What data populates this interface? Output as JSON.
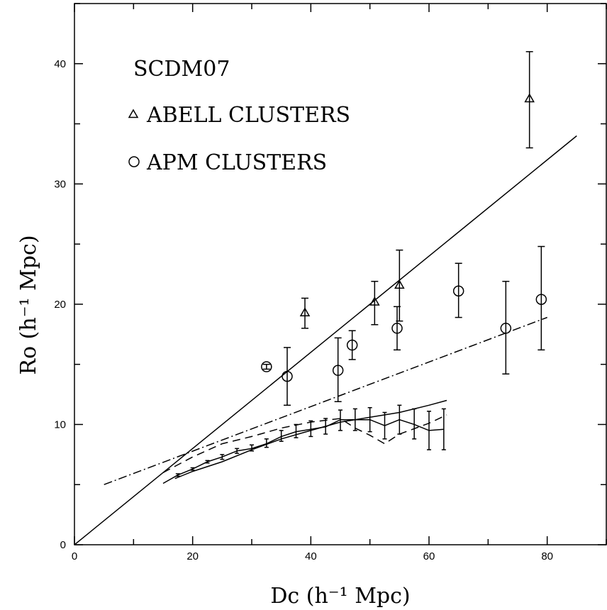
{
  "chart_data": {
    "type": "scatter",
    "title": "SCDM07",
    "xlabel": "Dc (h⁻¹ Mpc)",
    "ylabel": "Ro (h⁻¹ Mpc)",
    "xlim": [
      0,
      90
    ],
    "ylim": [
      0,
      45
    ],
    "x_ticks": [
      "0",
      "20",
      "40",
      "60",
      "80"
    ],
    "y_ticks": [
      "0",
      "10",
      "20",
      "30",
      "40"
    ],
    "x_minor_step": 10,
    "y_minor_step": 5,
    "legend": [
      {
        "label": "ABELL CLUSTERS",
        "marker": "triangle"
      },
      {
        "label": "APM CLUSTERS",
        "marker": "circle"
      }
    ],
    "series": [
      {
        "name": "ABELL CLUSTERS",
        "marker": "triangle",
        "points": [
          {
            "x": 39.0,
            "y": 19.3,
            "lo": 18.0,
            "hi": 20.5
          },
          {
            "x": 50.8,
            "y": 20.2,
            "lo": 18.3,
            "hi": 21.9
          },
          {
            "x": 55.0,
            "y": 21.6,
            "lo": 18.6,
            "hi": 24.5
          },
          {
            "x": 77.0,
            "y": 37.1,
            "lo": 33.0,
            "hi": 41.0
          }
        ]
      },
      {
        "name": "APM CLUSTERS",
        "marker": "circle",
        "points": [
          {
            "x": 32.5,
            "y": 14.8,
            "lo": 14.6,
            "hi": 15.0
          },
          {
            "x": 36.0,
            "y": 14.0,
            "lo": 11.6,
            "hi": 16.4
          },
          {
            "x": 44.6,
            "y": 14.5,
            "lo": 11.9,
            "hi": 17.2
          },
          {
            "x": 47.0,
            "y": 16.6,
            "lo": 15.4,
            "hi": 17.8
          },
          {
            "x": 54.6,
            "y": 18.0,
            "lo": 16.2,
            "hi": 19.8
          },
          {
            "x": 65.0,
            "y": 21.1,
            "lo": 18.9,
            "hi": 23.4
          },
          {
            "x": 73.0,
            "y": 18.0,
            "lo": 14.2,
            "hi": 21.9
          },
          {
            "x": 79.0,
            "y": 20.4,
            "lo": 16.2,
            "hi": 24.8
          }
        ]
      }
    ],
    "lines": [
      {
        "style": "solid",
        "x": [
          0,
          85
        ],
        "y": [
          0,
          34
        ]
      },
      {
        "style": "dashdot",
        "x": [
          5,
          80
        ],
        "y": [
          5.0,
          18.9
        ]
      },
      {
        "style": "solid",
        "x": [
          17,
          20,
          25,
          30,
          35,
          40,
          45,
          50,
          55,
          60,
          63
        ],
        "y": [
          5.5,
          6.1,
          6.9,
          7.9,
          8.8,
          9.5,
          10.2,
          10.6,
          11.0,
          11.6,
          12.0
        ]
      },
      {
        "style": "dashed",
        "x": [
          15,
          20,
          25,
          30,
          35,
          40,
          45,
          47.5,
          50,
          52.5,
          55,
          60,
          63
        ],
        "y": [
          6.0,
          7.3,
          8.4,
          9.0,
          9.7,
          10.2,
          10.5,
          9.7,
          9.1,
          8.4,
          9.2,
          10.1,
          10.8
        ]
      }
    ],
    "errorbar_series": {
      "style": "solid",
      "points": [
        {
          "x": 15,
          "y": 5.1,
          "lo": 5.1,
          "hi": 5.1
        },
        {
          "x": 17.5,
          "y": 5.8,
          "lo": 5.7,
          "hi": 5.9
        },
        {
          "x": 20,
          "y": 6.3,
          "lo": 6.2,
          "hi": 6.4
        },
        {
          "x": 22.5,
          "y": 6.9,
          "lo": 6.8,
          "hi": 7.0
        },
        {
          "x": 25,
          "y": 7.3,
          "lo": 7.1,
          "hi": 7.5
        },
        {
          "x": 27.5,
          "y": 7.8,
          "lo": 7.6,
          "hi": 8.0
        },
        {
          "x": 30,
          "y": 8.0,
          "lo": 7.8,
          "hi": 8.3
        },
        {
          "x": 32.5,
          "y": 8.4,
          "lo": 8.1,
          "hi": 8.8
        },
        {
          "x": 35,
          "y": 9.0,
          "lo": 8.6,
          "hi": 9.5
        },
        {
          "x": 37.5,
          "y": 9.4,
          "lo": 8.9,
          "hi": 10.0
        },
        {
          "x": 40,
          "y": 9.6,
          "lo": 9.0,
          "hi": 10.3
        },
        {
          "x": 42.5,
          "y": 9.8,
          "lo": 9.2,
          "hi": 10.5
        },
        {
          "x": 45,
          "y": 10.4,
          "lo": 9.5,
          "hi": 11.2
        },
        {
          "x": 47.5,
          "y": 10.4,
          "lo": 9.5,
          "hi": 11.3
        },
        {
          "x": 50,
          "y": 10.4,
          "lo": 9.4,
          "hi": 11.4
        },
        {
          "x": 52.5,
          "y": 9.9,
          "lo": 8.8,
          "hi": 11.0
        },
        {
          "x": 55,
          "y": 10.4,
          "lo": 9.2,
          "hi": 11.6
        },
        {
          "x": 57.5,
          "y": 10.0,
          "lo": 8.8,
          "hi": 11.3
        },
        {
          "x": 60,
          "y": 9.5,
          "lo": 7.9,
          "hi": 11.1
        },
        {
          "x": 62.5,
          "y": 9.6,
          "lo": 7.9,
          "hi": 11.3
        }
      ]
    },
    "grid": false
  }
}
